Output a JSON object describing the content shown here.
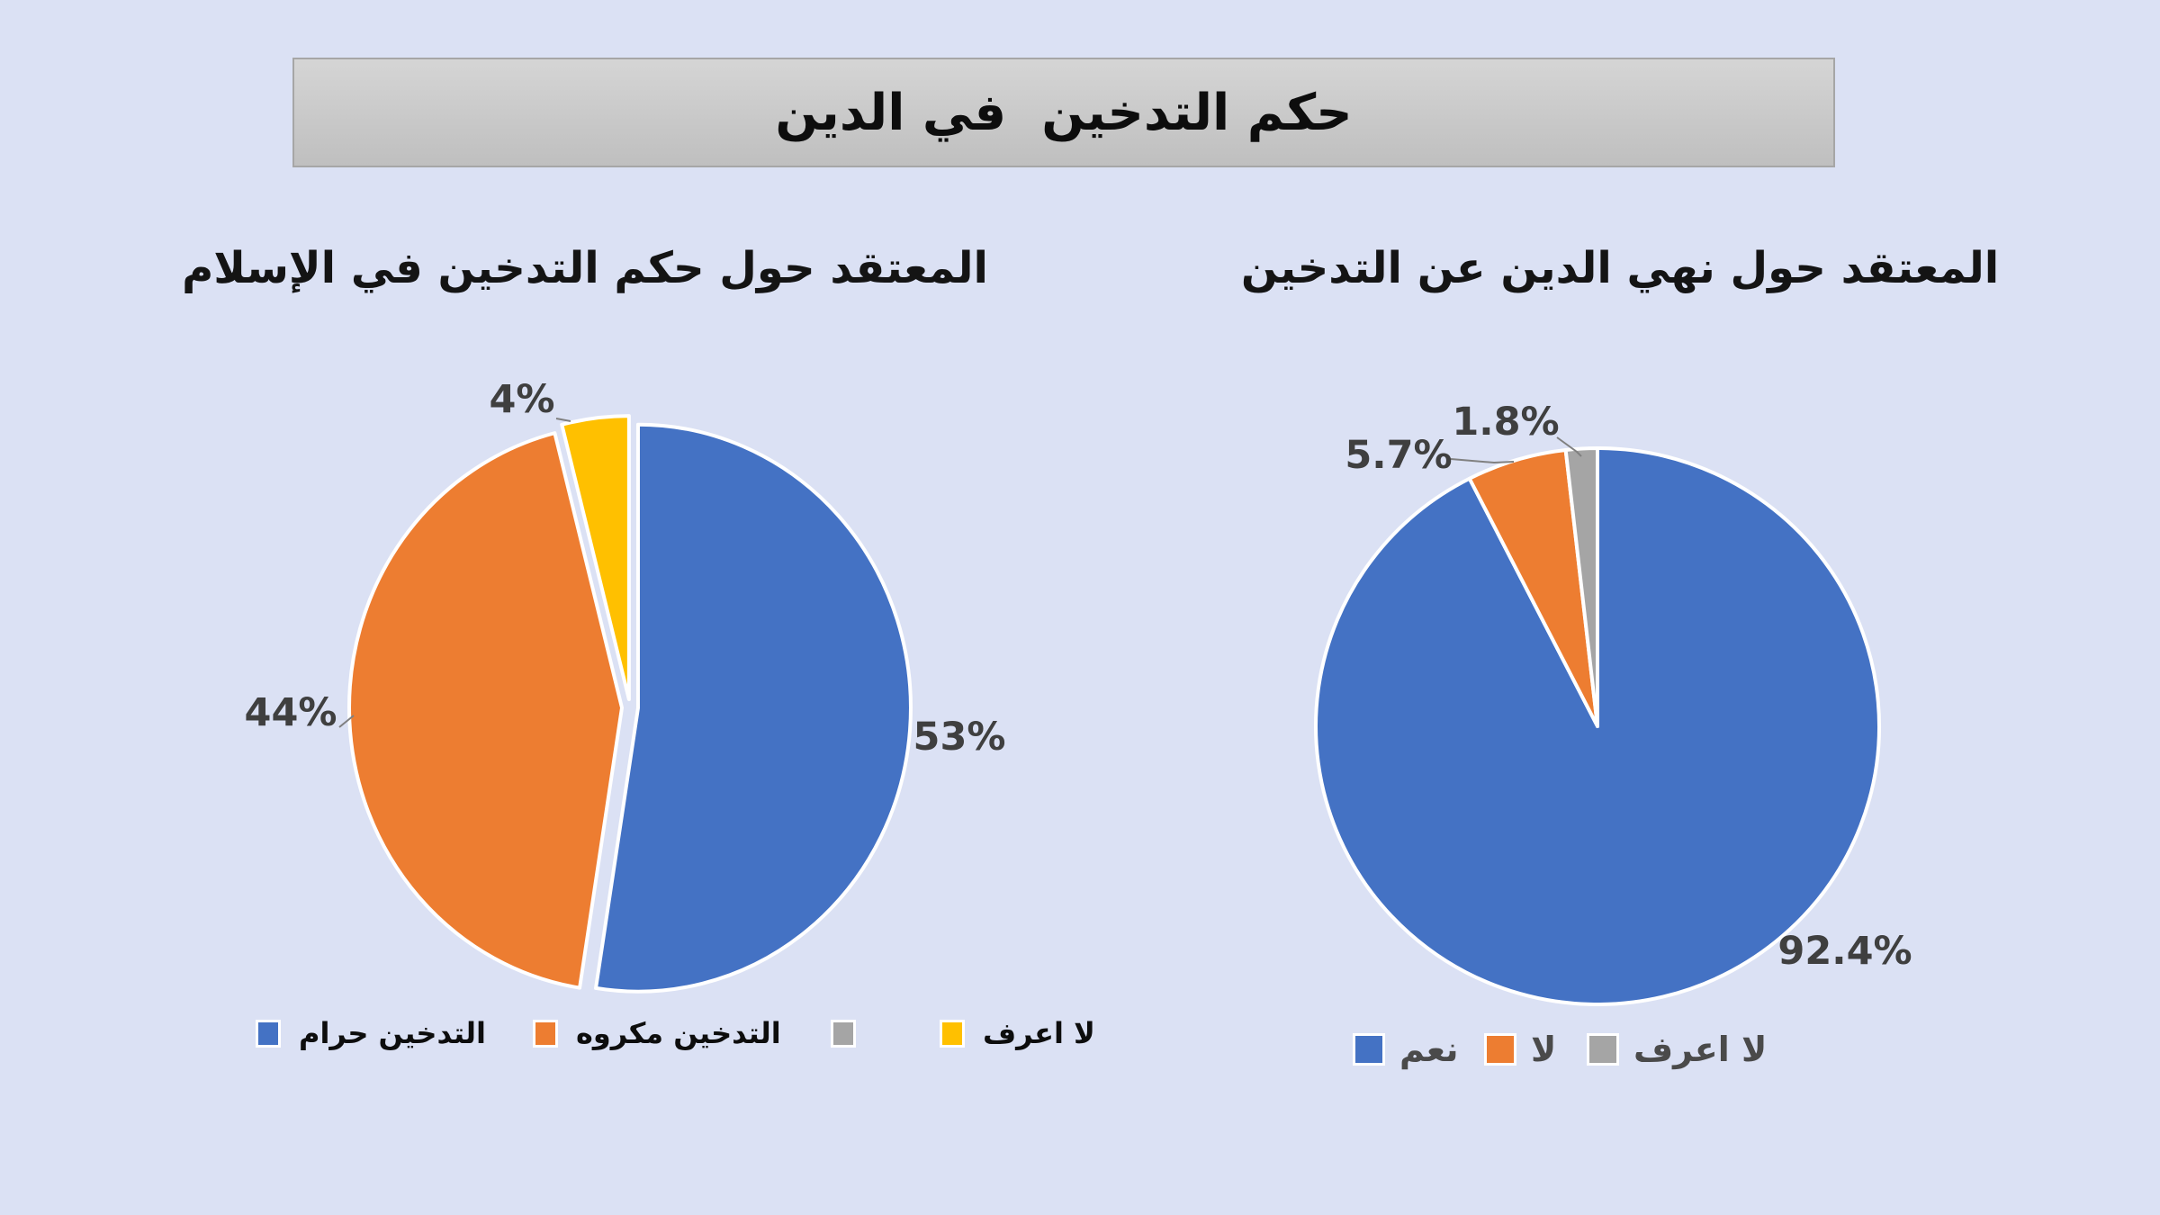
{
  "banner": {
    "title": "حكم التدخين  في الدين"
  },
  "theme": {
    "background": "#dbe1f4",
    "banner_fill_top": "#d5d5d5",
    "banner_fill_bottom": "#bfbfbf",
    "banner_border": "#a6a6a6",
    "slice_border": "#ffffff",
    "data_label_color": "#3f3f3f",
    "leader_line_color": "#808080",
    "legend_text_left": "#0d0d0d",
    "legend_text_right": "#4a4a4a",
    "blue": "#4472C4",
    "orange": "#ED7D31",
    "gray": "#A5A5A5",
    "yellow": "#FFC000"
  },
  "chart_data": [
    {
      "type": "pie",
      "title": "المعتقد حول حكم التدخين في الإسلام",
      "legend_position": "bottom",
      "start_angle_deg": 0,
      "slices": [
        {
          "label": "التدخين حرام",
          "value": 53,
          "display": "53%",
          "color": "#4472C4"
        },
        {
          "label": "التدخين مكروه",
          "value": 44,
          "display": "44%",
          "color": "#ED7D31"
        },
        {
          "label": "",
          "value": 0,
          "display": "",
          "color": "#A5A5A5"
        },
        {
          "label": "لا اعرف",
          "value": 4,
          "display": "4%",
          "color": "#FFC000"
        }
      ]
    },
    {
      "type": "pie",
      "title": "المعتقد حول نهي الدين عن التدخين",
      "legend_position": "bottom",
      "start_angle_deg": 0,
      "slices": [
        {
          "label": "نعم",
          "value": 92.4,
          "display": "92.4%",
          "color": "#4472C4"
        },
        {
          "label": "لا",
          "value": 5.7,
          "display": "5.7%",
          "color": "#ED7D31"
        },
        {
          "label": "لا اعرف",
          "value": 1.8,
          "display": "1.8%",
          "color": "#A5A5A5"
        }
      ]
    }
  ]
}
